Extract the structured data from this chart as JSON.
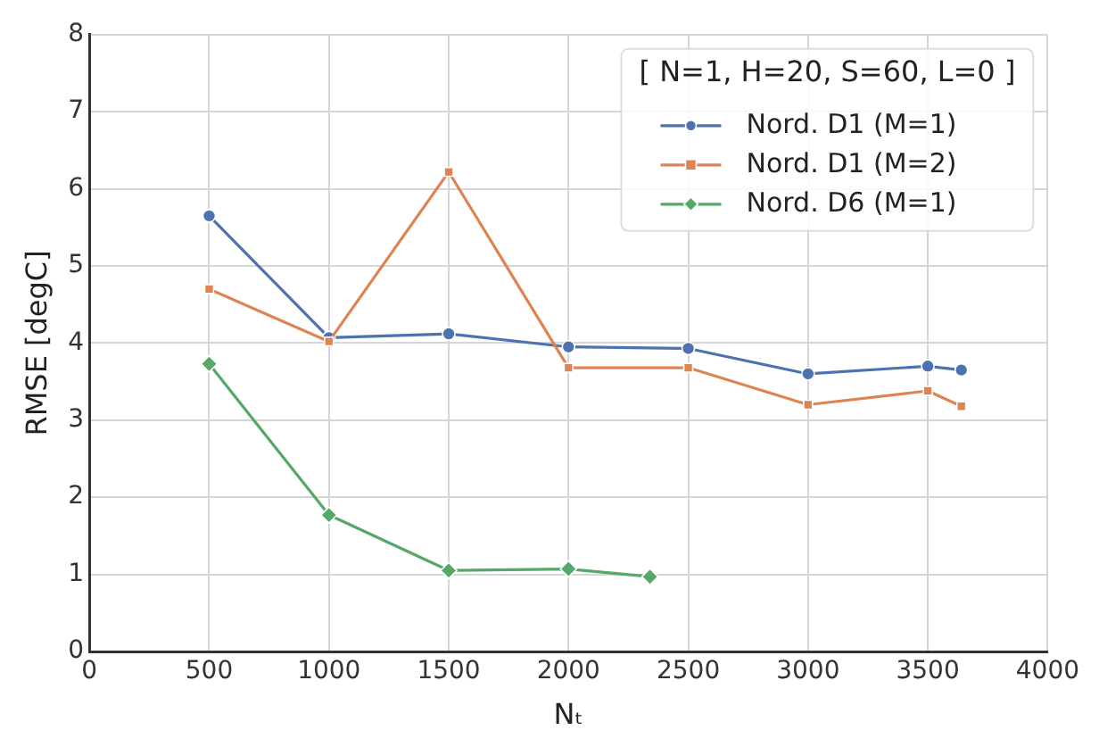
{
  "chart_data": {
    "type": "line",
    "xlabel": "Nₜ",
    "ylabel": "RMSE [degC]",
    "legend_title": "[ N=1, H=20, S=60, L=0 ]",
    "legend": "top right",
    "grid": true,
    "xlim": [
      0,
      4000
    ],
    "xticks": [
      0,
      500,
      1000,
      1500,
      2000,
      2500,
      3000,
      3500,
      4000
    ],
    "ylim": [
      0,
      8
    ],
    "yticks": [
      0,
      1,
      2,
      3,
      4,
      5,
      6,
      7,
      8
    ],
    "series": [
      {
        "name": "Nord. D1 (M=1)",
        "color": "#4c72b0",
        "marker": "circle",
        "x": [
          500,
          1000,
          1500,
          2000,
          2500,
          3000,
          3500,
          3640
        ],
        "values": [
          5.65,
          4.07,
          4.12,
          3.95,
          3.93,
          3.6,
          3.7,
          3.65
        ]
      },
      {
        "name": "Nord. D1 (M=2)",
        "color": "#dd8452",
        "marker": "square",
        "x": [
          500,
          1000,
          1500,
          2000,
          2500,
          3000,
          3500,
          3640
        ],
        "values": [
          4.7,
          4.02,
          6.22,
          3.68,
          3.68,
          3.2,
          3.38,
          3.18
        ]
      },
      {
        "name": "Nord. D6 (M=1)",
        "color": "#55a868",
        "marker": "diamond",
        "x": [
          500,
          1000,
          1500,
          2000,
          2340
        ],
        "values": [
          3.73,
          1.77,
          1.05,
          1.07,
          0.97
        ]
      }
    ]
  }
}
